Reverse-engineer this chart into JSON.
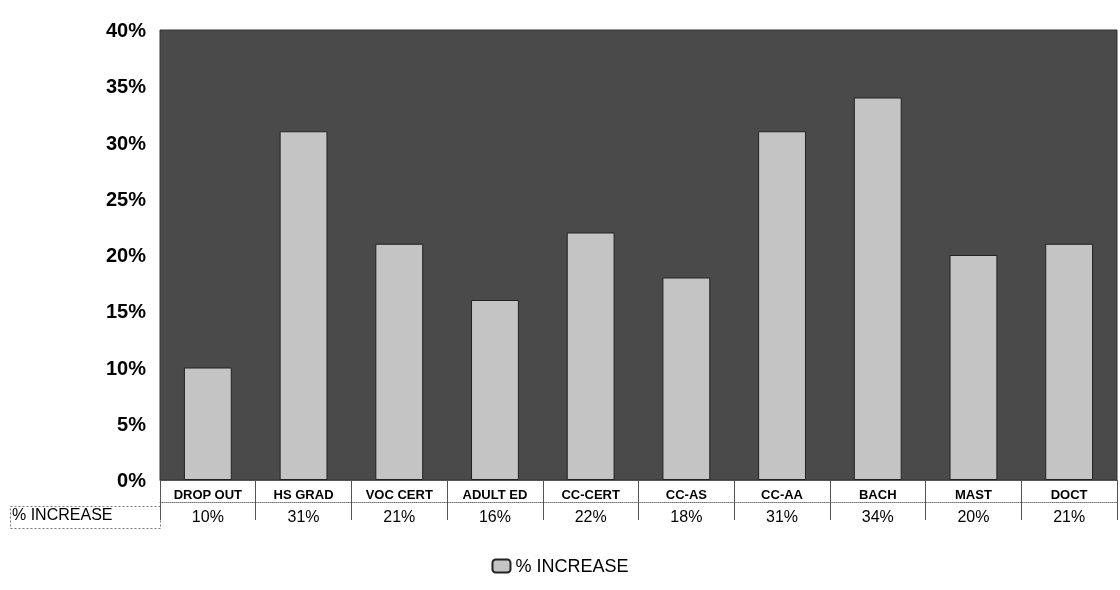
{
  "chart_data": {
    "type": "bar",
    "categories": [
      "DROP OUT",
      "HS GRAD",
      "VOC CERT",
      "ADULT ED",
      "CC-CERT",
      "CC-AS",
      "CC-AA",
      "BACH",
      "MAST",
      "DOCT"
    ],
    "series": [
      {
        "name": "% INCREASE",
        "color": "#c4c4c4",
        "values": [
          10,
          31,
          21,
          16,
          22,
          18,
          31,
          34,
          20,
          21
        ],
        "value_labels": [
          "10%",
          "31%",
          "21%",
          "16%",
          "22%",
          "18%",
          "31%",
          "34%",
          "20%",
          "21%"
        ]
      }
    ],
    "ylim": [
      0,
      40
    ],
    "yticks": [
      {
        "value": 0,
        "label": "0%"
      },
      {
        "value": 5,
        "label": "5%"
      },
      {
        "value": 10,
        "label": "10%"
      },
      {
        "value": 15,
        "label": "15%"
      },
      {
        "value": 20,
        "label": "20%"
      },
      {
        "value": 25,
        "label": "25%"
      },
      {
        "value": 30,
        "label": "30%"
      },
      {
        "value": 35,
        "label": "35%"
      },
      {
        "value": 40,
        "label": "40%"
      }
    ],
    "grid": false,
    "legend": "bottom"
  }
}
